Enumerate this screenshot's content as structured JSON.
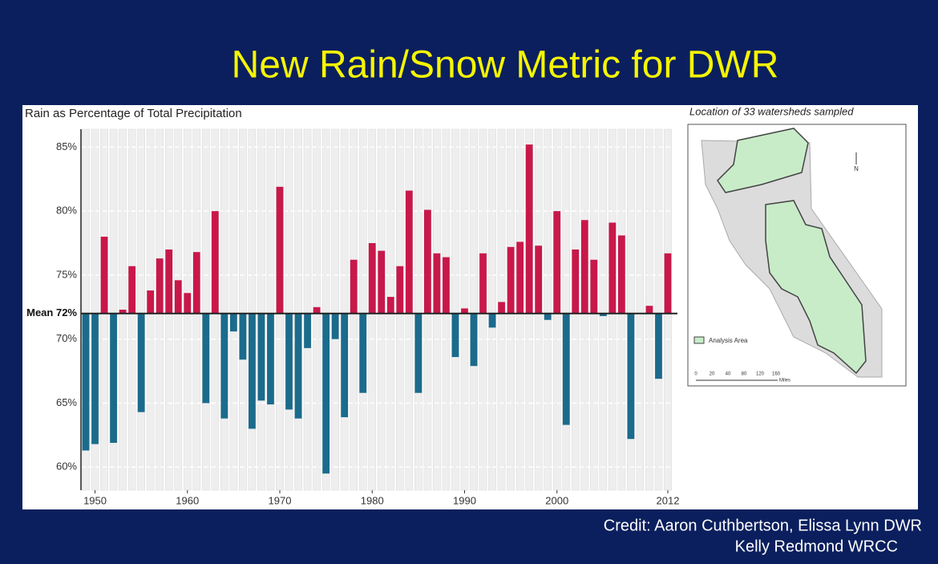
{
  "slide": {
    "title": "New Rain/Snow Metric for DWR",
    "credit": [
      "Credit: Aaron Cuthbertson, Elissa Lynn DWR",
      "Kelly Redmond WRCC"
    ]
  },
  "chart_data": {
    "type": "bar",
    "title": "Rain as Percentage of Total Precipitation",
    "x": [
      1949,
      1950,
      1951,
      1952,
      1953,
      1954,
      1955,
      1956,
      1957,
      1958,
      1959,
      1960,
      1961,
      1962,
      1963,
      1964,
      1965,
      1966,
      1967,
      1968,
      1969,
      1970,
      1971,
      1972,
      1973,
      1974,
      1975,
      1976,
      1977,
      1978,
      1979,
      1980,
      1981,
      1982,
      1983,
      1984,
      1985,
      1986,
      1987,
      1988,
      1989,
      1990,
      1991,
      1992,
      1993,
      1994,
      1995,
      1996,
      1997,
      1998,
      1999,
      2000,
      2001,
      2002,
      2003,
      2004,
      2005,
      2006,
      2007,
      2008,
      2009,
      2010,
      2011,
      2012
    ],
    "values": [
      61.3,
      61.8,
      78.0,
      61.9,
      72.3,
      75.7,
      64.3,
      73.8,
      76.3,
      77.0,
      74.6,
      73.6,
      76.8,
      65.0,
      80.0,
      63.8,
      70.6,
      68.4,
      63.0,
      65.2,
      64.9,
      81.9,
      64.5,
      63.8,
      69.3,
      72.5,
      59.5,
      70.0,
      63.9,
      76.2,
      65.8,
      77.5,
      76.9,
      73.3,
      75.7,
      81.6,
      65.8,
      80.1,
      76.7,
      76.4,
      68.6,
      72.4,
      67.9,
      76.7,
      70.9,
      72.9,
      77.2,
      77.6,
      85.2,
      77.3,
      71.5,
      80.0,
      63.3,
      77.0,
      79.3,
      76.2,
      71.8,
      79.1,
      78.1,
      62.2,
      72.0,
      72.6,
      66.9,
      76.7
    ],
    "mean": {
      "value": 72,
      "label": "Mean 72%"
    },
    "above_color": "#c8184a",
    "below_color": "#1b6b8c",
    "xlim": [
      1948.5,
      2012.5
    ],
    "xticks": [
      1950,
      1960,
      1970,
      1980,
      1990,
      2000,
      2012
    ],
    "ylim": [
      58.2,
      86.4
    ],
    "yticks": [
      {
        "value": 60,
        "label": "60%"
      },
      {
        "value": 65,
        "label": "65%"
      },
      {
        "value": 70,
        "label": "70%"
      },
      {
        "value": 75,
        "label": "75%"
      },
      {
        "value": 80,
        "label": "80%"
      },
      {
        "value": 85,
        "label": "85%"
      }
    ],
    "grid": true
  },
  "map": {
    "title": "Location of 33 watersheds sampled",
    "north": "N",
    "legend": "Analysis Area",
    "scale": [
      "0",
      "20",
      "40",
      "80",
      "120",
      "160"
    ],
    "unit": "Miles"
  }
}
